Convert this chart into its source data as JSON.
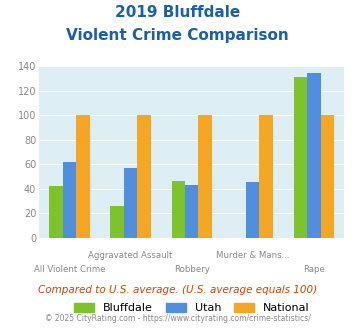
{
  "title_line1": "2019 Bluffdale",
  "title_line2": "Violent Crime Comparison",
  "categories_top": [
    "",
    "Aggravated Assault",
    "",
    "Murder & Mans...",
    ""
  ],
  "categories_bottom": [
    "All Violent Crime",
    "",
    "Robbery",
    "",
    "Rape"
  ],
  "bluffdale": [
    42,
    26,
    46,
    0,
    131
  ],
  "utah": [
    62,
    57,
    43,
    45,
    134
  ],
  "national": [
    100,
    100,
    100,
    100,
    100
  ],
  "bluffdale_color": "#7dc42a",
  "utah_color": "#4f8fde",
  "national_color": "#f5a623",
  "bg_color": "#ddeef5",
  "title_color": "#1a5fa8",
  "ylabel_max": 140,
  "yticks": [
    0,
    20,
    40,
    60,
    80,
    100,
    120,
    140
  ],
  "footnote": "Compared to U.S. average. (U.S. average equals 100)",
  "copyright": "© 2025 CityRating.com - https://www.cityrating.com/crime-statistics/",
  "footnote_color": "#cc4400",
  "copyright_color": "#888888",
  "legend_labels": [
    "Bluffdale",
    "Utah",
    "National"
  ],
  "tick_color": "#888888",
  "bar_width": 0.22
}
